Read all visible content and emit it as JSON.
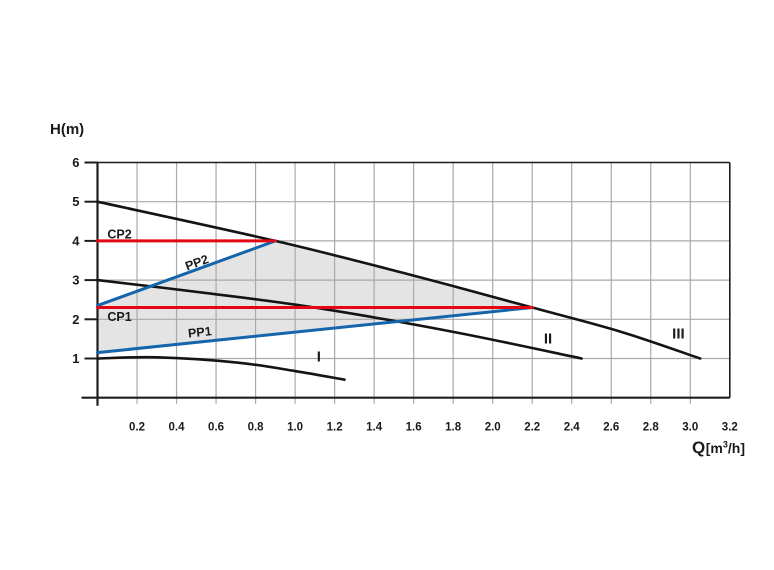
{
  "page": {
    "background": "#ffffff"
  },
  "y_axis_title": "H(m)",
  "x_axis_unit": {
    "symbol": "Q",
    "bracket_open": "[m",
    "superscript": "3",
    "bracket_close": "/h]"
  },
  "colors": {
    "curve_black": "#141414",
    "red": "#e30613",
    "blue": "#1565ab",
    "grid": "#a9a9a9",
    "frame": "#1d1d1d",
    "fill": "#e4e4e4",
    "text": "#1a1a1a"
  },
  "chart_data": {
    "type": "line",
    "title": "",
    "xlabel": "Q [m3/h]",
    "ylabel": "H (m)",
    "xlim": [
      0,
      3.2
    ],
    "ylim": [
      0,
      6
    ],
    "grid": true,
    "grid_x_step": 0.2,
    "grid_y_step": 1,
    "legend": "none",
    "x_ticks": [
      "0.2",
      "0.4",
      "0.6",
      "0.8",
      "1.0",
      "1.2",
      "1.4",
      "1.6",
      "1.8",
      "2.0",
      "2.2",
      "2.4",
      "2.6",
      "2.8",
      "3.0",
      "3.2"
    ],
    "y_ticks": [
      "1",
      "2",
      "3",
      "4",
      "5",
      "6"
    ],
    "shaded_region": {
      "name": "operating-range",
      "color": "#e4e4e4",
      "points": [
        [
          0,
          1.15
        ],
        [
          0,
          2.35
        ],
        [
          0.9,
          4.0
        ],
        [
          1.55,
          3.18
        ],
        [
          2.2,
          2.3
        ]
      ]
    },
    "series": [
      {
        "name": "curve-I",
        "label": "I",
        "kind": "pump-speed-curve",
        "color": "#141414",
        "width": 2.6,
        "smooth": true,
        "points": [
          [
            0,
            1.0
          ],
          [
            0.3,
            1.03
          ],
          [
            0.7,
            0.9
          ],
          [
            1.0,
            0.68
          ],
          [
            1.25,
            0.46
          ]
        ],
        "label_pos": [
          1.12,
          1.06
        ],
        "label_rotation": 0,
        "label_size": 15,
        "label_anchor": "middle"
      },
      {
        "name": "curve-II",
        "label": "II",
        "kind": "pump-speed-curve",
        "color": "#141414",
        "width": 2.6,
        "smooth": true,
        "points": [
          [
            0,
            3.0
          ],
          [
            0.55,
            2.67
          ],
          [
            1.1,
            2.3
          ],
          [
            1.8,
            1.68
          ],
          [
            2.45,
            1.0
          ]
        ],
        "label_pos": [
          2.28,
          1.52
        ],
        "label_rotation": 0,
        "label_size": 15,
        "label_anchor": "middle"
      },
      {
        "name": "curve-III",
        "label": "III",
        "kind": "pump-speed-curve",
        "color": "#141414",
        "width": 2.6,
        "smooth": true,
        "points": [
          [
            0,
            5.0
          ],
          [
            0.9,
            4.0
          ],
          [
            1.55,
            3.18
          ],
          [
            2.2,
            2.3
          ],
          [
            2.65,
            1.68
          ],
          [
            3.05,
            1.0
          ]
        ],
        "label_pos": [
          2.94,
          1.65
        ],
        "label_rotation": 0,
        "label_size": 15,
        "label_anchor": "middle"
      },
      {
        "name": "PP1",
        "label": "PP1",
        "kind": "proportional-pressure-line",
        "color": "#1565ab",
        "width": 3,
        "smooth": false,
        "points": [
          [
            0,
            1.15
          ],
          [
            2.2,
            2.3
          ]
        ],
        "label_pos": [
          0.52,
          1.68
        ],
        "label_rotation": -6,
        "label_size": 12.5,
        "label_anchor": "middle"
      },
      {
        "name": "PP2",
        "label": "PP2",
        "kind": "proportional-pressure-line",
        "color": "#1565ab",
        "width": 3,
        "smooth": false,
        "points": [
          [
            0,
            2.35
          ],
          [
            0.9,
            4.0
          ]
        ],
        "label_pos": [
          0.51,
          3.46
        ],
        "label_rotation": -20,
        "label_size": 12.5,
        "label_anchor": "middle"
      },
      {
        "name": "CP1",
        "label": "CP1",
        "kind": "constant-pressure-line",
        "color": "#e30613",
        "width": 3,
        "smooth": false,
        "points": [
          [
            0,
            2.3
          ],
          [
            2.2,
            2.3
          ]
        ],
        "label_pos": [
          0.05,
          2.07
        ],
        "label_rotation": 0,
        "label_size": 12.5,
        "label_anchor": "start"
      },
      {
        "name": "CP2",
        "label": "CP2",
        "kind": "constant-pressure-line",
        "color": "#e30613",
        "width": 3,
        "smooth": false,
        "points": [
          [
            0,
            4.0
          ],
          [
            0.9,
            4.0
          ]
        ],
        "label_pos": [
          0.05,
          4.17
        ],
        "label_rotation": 0,
        "label_size": 12.5,
        "label_anchor": "start"
      }
    ]
  }
}
